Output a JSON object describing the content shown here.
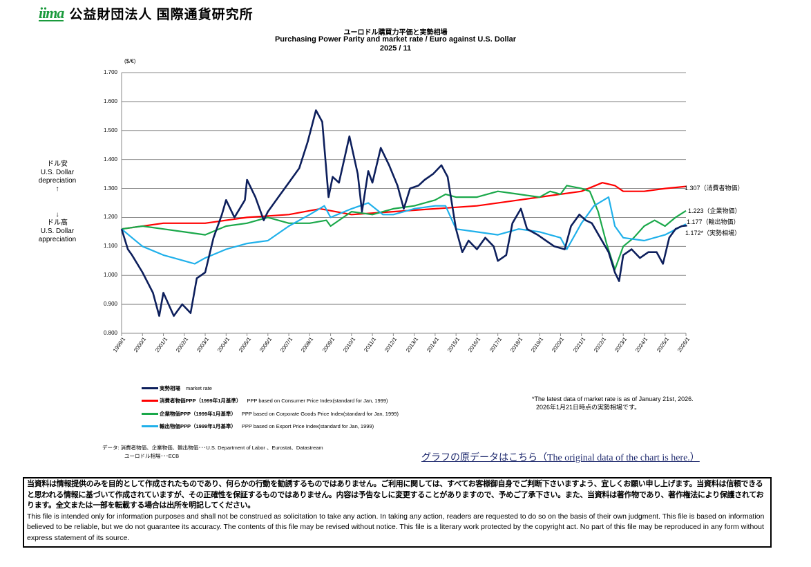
{
  "header": {
    "logo_text": "iima",
    "organization": "公益財団法人  国際通貨研究所"
  },
  "chart_data": {
    "type": "line",
    "title_jp": "ユーロドル購買力平価と実勢相場",
    "title": "Purchasing Power Parity and market rate / Euro against  U.S. Dollar",
    "subtitle": "2025 / 11",
    "ylabel": "($/€)",
    "ylim": [
      0.8,
      1.7
    ],
    "xlim": [
      1999.0,
      2026.0
    ],
    "yticks": [
      "0.800",
      "0.900",
      "1.000",
      "1.100",
      "1.200",
      "1.300",
      "1.400",
      "1.500",
      "1.600",
      "1.700"
    ],
    "xticks": [
      "1999/1",
      "2000/1",
      "2001/1",
      "2002/1",
      "2003/1",
      "2004/1",
      "2005/1",
      "2006/1",
      "2007/1",
      "2008/1",
      "2009/1",
      "2010/1",
      "2011/1",
      "2012/1",
      "2013/1",
      "2014/1",
      "2015/1",
      "2016/1",
      "2017/1",
      "2018/1",
      "2019/1",
      "2020/1",
      "2021/1",
      "2022/1",
      "2023/1",
      "2024/1",
      "2025/1",
      "2026/1"
    ],
    "grid": true,
    "legend_placement": "bottom",
    "side_labels": {
      "up_jp": "ドル安",
      "up_en1": "U.S. Dollar",
      "up_en2": "depreciation",
      "up_arrow": "↑",
      "down_arrow": "↓",
      "down_jp": "ドル高",
      "down_en1": "U.S. Dollar",
      "down_en2": "appreciation"
    },
    "series": [
      {
        "name": "実勢相場　market rate",
        "name_jp": "実勢相場",
        "name_en": "market rate",
        "color": "#0d1f5c",
        "end_label": "1.172*（実勢相場）",
        "x": [
          1999.0,
          1999.3,
          1999.5,
          2000.0,
          2000.5,
          2000.8,
          2001.0,
          2001.5,
          2001.9,
          2002.3,
          2002.6,
          2003.0,
          2003.4,
          2003.8,
          2004.0,
          2004.4,
          2004.9,
          2005.0,
          2005.4,
          2005.8,
          2006.0,
          2006.5,
          2007.0,
          2007.5,
          2007.9,
          2008.3,
          2008.6,
          2008.9,
          2009.1,
          2009.4,
          2009.9,
          2010.3,
          2010.5,
          2010.8,
          2011.0,
          2011.4,
          2011.8,
          2012.2,
          2012.5,
          2012.8,
          2013.2,
          2013.5,
          2013.9,
          2014.3,
          2014.6,
          2015.0,
          2015.3,
          2015.6,
          2016.0,
          2016.4,
          2016.8,
          2017.0,
          2017.4,
          2017.7,
          2018.1,
          2018.4,
          2018.9,
          2019.3,
          2019.7,
          2020.2,
          2020.5,
          2020.9,
          2021.2,
          2021.5,
          2021.9,
          2022.3,
          2022.6,
          2022.8,
          2023.0,
          2023.4,
          2023.8,
          2024.2,
          2024.6,
          2024.9,
          2025.2,
          2025.5,
          2025.8,
          2026.05
        ],
        "values": [
          1.16,
          1.09,
          1.07,
          1.01,
          0.94,
          0.86,
          0.94,
          0.86,
          0.9,
          0.87,
          0.99,
          1.01,
          1.13,
          1.21,
          1.26,
          1.2,
          1.26,
          1.33,
          1.27,
          1.19,
          1.22,
          1.27,
          1.32,
          1.37,
          1.46,
          1.57,
          1.53,
          1.27,
          1.34,
          1.32,
          1.48,
          1.35,
          1.22,
          1.36,
          1.32,
          1.44,
          1.38,
          1.31,
          1.23,
          1.3,
          1.31,
          1.33,
          1.35,
          1.38,
          1.34,
          1.16,
          1.08,
          1.12,
          1.09,
          1.13,
          1.1,
          1.05,
          1.07,
          1.18,
          1.23,
          1.16,
          1.14,
          1.12,
          1.1,
          1.09,
          1.17,
          1.21,
          1.19,
          1.18,
          1.13,
          1.08,
          1.01,
          0.98,
          1.07,
          1.09,
          1.06,
          1.08,
          1.08,
          1.04,
          1.13,
          1.16,
          1.17,
          1.172
        ]
      },
      {
        "name": "消費者物価PPP（1999年1月基準）　PPP based on Consumer Price Index(standard for Jan, 1999)",
        "name_jp": "消費者物価PPP（1999年1月基準）",
        "name_en": "PPP based on Consumer Price Index(standard for Jan, 1999)",
        "color": "#ff0000",
        "end_label": "1.307（消費者物価）",
        "x": [
          1999.0,
          2001.0,
          2003.0,
          2005.0,
          2007.0,
          2008.5,
          2010.0,
          2012.0,
          2014.0,
          2016.0,
          2018.0,
          2020.0,
          2021.0,
          2022.0,
          2022.6,
          2023.0,
          2024.0,
          2025.0,
          2026.0
        ],
        "values": [
          1.16,
          1.18,
          1.18,
          1.2,
          1.21,
          1.23,
          1.21,
          1.22,
          1.23,
          1.24,
          1.26,
          1.28,
          1.29,
          1.32,
          1.31,
          1.29,
          1.29,
          1.3,
          1.307
        ]
      },
      {
        "name": "企業物価PPP（1999年1月基準）　PPP based on Corporate Goods Price Index(standard for Jan, 1999)",
        "name_jp": "企業物価PPP（1999年1月基準）",
        "name_en": "PPP based on Corporate Goods Price Index(standard for Jan, 1999)",
        "color": "#1aa84a",
        "end_label": "1.223（企業物価）",
        "x": [
          1999.0,
          2000.0,
          2001.0,
          2002.0,
          2003.0,
          2004.0,
          2005.0,
          2006.0,
          2007.0,
          2008.0,
          2008.8,
          2009.0,
          2010.0,
          2011.0,
          2012.0,
          2013.0,
          2014.0,
          2014.5,
          2015.0,
          2016.0,
          2017.0,
          2018.0,
          2019.0,
          2019.5,
          2020.0,
          2020.3,
          2021.0,
          2021.4,
          2021.8,
          2022.2,
          2022.6,
          2023.0,
          2023.5,
          2024.0,
          2024.5,
          2025.0,
          2025.5,
          2026.0
        ],
        "values": [
          1.16,
          1.17,
          1.16,
          1.15,
          1.14,
          1.17,
          1.18,
          1.2,
          1.18,
          1.18,
          1.19,
          1.17,
          1.22,
          1.21,
          1.23,
          1.24,
          1.26,
          1.28,
          1.27,
          1.27,
          1.29,
          1.28,
          1.27,
          1.29,
          1.28,
          1.31,
          1.3,
          1.29,
          1.22,
          1.11,
          1.02,
          1.1,
          1.13,
          1.17,
          1.19,
          1.17,
          1.2,
          1.223
        ]
      },
      {
        "name": "輸出物価PPP（1999年1月基準）　PPP based on Export Price Index(standard for Jan, 1999)",
        "name_jp": "輸出物価PPP（1999年1月基準）",
        "name_en": "PPP based on Export Price Index(standard for Jan, 1999)",
        "color": "#1fb0ea",
        "end_label": "1.177（輸出物価）",
        "x": [
          1999.0,
          1999.5,
          2000.0,
          2001.0,
          2002.0,
          2002.5,
          2003.0,
          2004.0,
          2005.0,
          2006.0,
          2007.0,
          2008.0,
          2008.7,
          2009.0,
          2010.0,
          2010.8,
          2011.5,
          2012.0,
          2013.0,
          2014.0,
          2014.5,
          2015.0,
          2016.0,
          2017.0,
          2018.0,
          2019.0,
          2020.0,
          2020.3,
          2021.0,
          2021.6,
          2022.3,
          2022.6,
          2023.0,
          2024.0,
          2025.0,
          2026.0
        ],
        "values": [
          1.16,
          1.13,
          1.1,
          1.07,
          1.05,
          1.04,
          1.06,
          1.09,
          1.11,
          1.12,
          1.17,
          1.21,
          1.24,
          1.2,
          1.23,
          1.25,
          1.21,
          1.21,
          1.23,
          1.24,
          1.24,
          1.16,
          1.15,
          1.14,
          1.16,
          1.15,
          1.13,
          1.09,
          1.18,
          1.24,
          1.27,
          1.17,
          1.13,
          1.12,
          1.14,
          1.177
        ]
      }
    ]
  },
  "notes": {
    "latest_en": "*The latest data of market rate is as of January 21st, 2026.",
    "latest_jp": "2026年1月21日時点の実勢相場です。",
    "source_line1": "データ: 消費者物価、企業物価、輸出物価･･･U.S. Department of Labor 、Eurostat、Datastream",
    "source_line2": "ユーロドル相場･･･ECB",
    "data_link": "グラフの原データはこちら（The original data of the chart is here.）"
  },
  "disclaimer": {
    "jp": "当資料は情報提供のみを目的として作成されたものであり、何らかの行動を勧誘するものではありません。ご利用に関しては、すべてお客様御自身でご判断下さいますよう、宜しくお願い申し上げます。当資料は信頼できると思われる情報に基づいて作成されていますが、その正確性を保証するものではありません。内容は予告なしに変更することがありますので、予めご了承下さい。また、当資料は著作物であり、著作権法により保護されております。全文または一部を転載する場合は出所を明記してください。",
    "en": "This file is intended only for information purposes and shall not be construed as solicitation to take any action. In taking any action, readers are requested to do so on the basis of their own judgment. This file is based on information believed to be reliable, but we do not guarantee its accuracy. The contents of this file may be revised without notice. This file is a literary work protected by the copyright act. No part of this file may be reproduced in any form without express statement of its source."
  }
}
